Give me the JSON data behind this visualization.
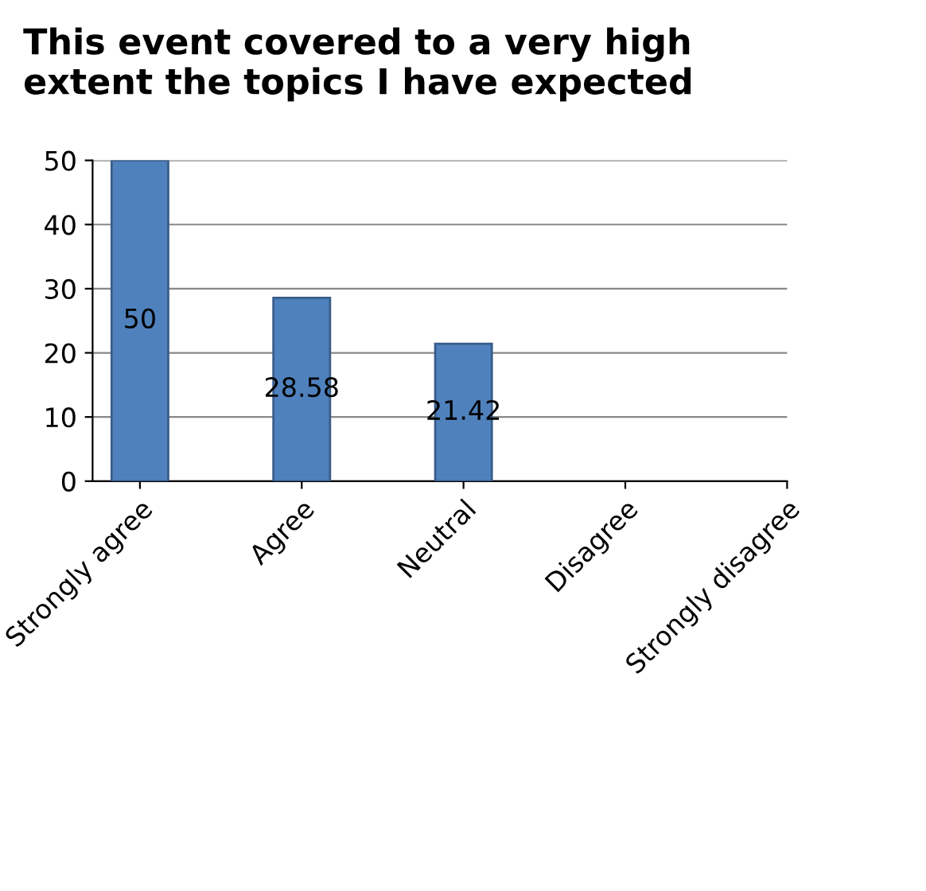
{
  "chart_data": {
    "type": "bar",
    "title": "This event covered to a very high\nextent the topics I have expected",
    "categories": [
      "Strongly agree",
      "Agree",
      "Neutral",
      "Disagree",
      "Strongly disagree"
    ],
    "values": [
      50,
      28.58,
      21.42,
      null,
      null
    ],
    "value_labels": [
      "50",
      "28.58",
      "21.42",
      null,
      null
    ],
    "color": "#4f81bd",
    "ylim": [
      0,
      50
    ],
    "yticks": [
      0,
      10,
      20,
      30,
      40,
      50
    ],
    "grid": "y"
  }
}
